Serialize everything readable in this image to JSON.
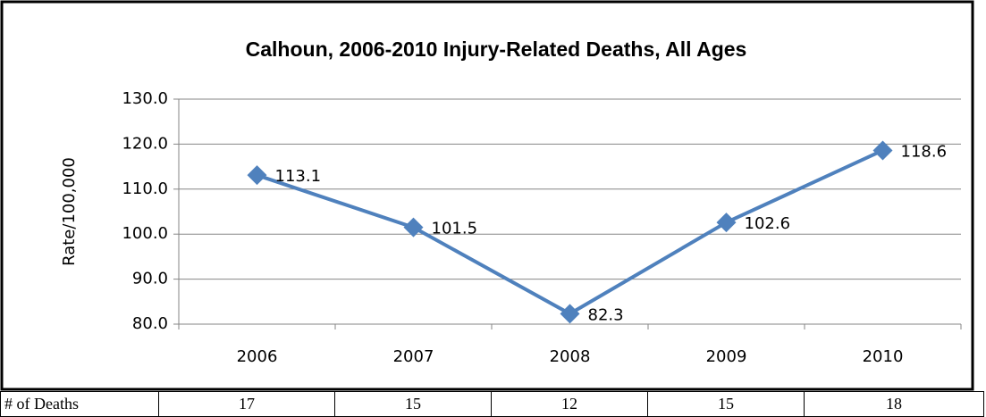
{
  "chart_data": {
    "type": "line",
    "title": "Calhoun, 2006-2010 Injury-Related Deaths, All Ages",
    "ylabel": "Rate/100,000",
    "categories": [
      "2006",
      "2007",
      "2008",
      "2009",
      "2010"
    ],
    "values": [
      113.1,
      101.5,
      82.3,
      102.6,
      118.6
    ],
    "color": "#4f81bd",
    "ylim": [
      80,
      130
    ],
    "yticks": [
      {
        "value": 80,
        "label": "80.0"
      },
      {
        "value": 90,
        "label": "90.0"
      },
      {
        "value": 100,
        "label": "100.0"
      },
      {
        "value": 110,
        "label": "110.0"
      },
      {
        "value": 120,
        "label": "120.0"
      },
      {
        "value": 130,
        "label": "130.0"
      }
    ],
    "grid": true
  },
  "table": {
    "rows": [
      [
        "# of Deaths",
        "17",
        "15",
        "12",
        "15",
        "18"
      ]
    ]
  }
}
